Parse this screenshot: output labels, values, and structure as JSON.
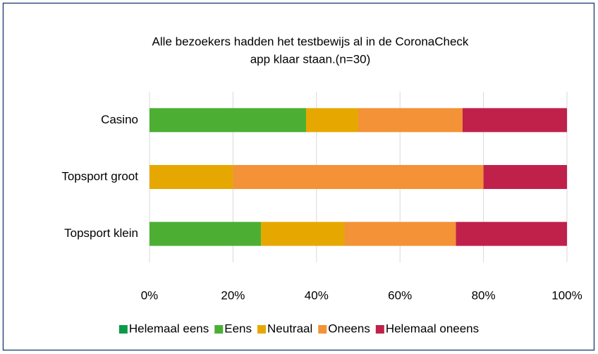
{
  "chart_data": {
    "type": "stacked_bar_horizontal",
    "title": [
      "Alle bezoekers hadden het testbewijs al in de CoronaCheck",
      "app klaar staan.(n=30)"
    ],
    "categories": [
      "Casino",
      "Topsport groot",
      "Topsport klein"
    ],
    "series": [
      {
        "name": "Helemaal eens",
        "color": "#0d9a48",
        "values": [
          0,
          0,
          0
        ]
      },
      {
        "name": "Eens",
        "color": "#4caf34",
        "values": [
          37.5,
          0,
          26.7
        ]
      },
      {
        "name": "Neutraal",
        "color": "#e6a800",
        "values": [
          12.5,
          20,
          20
        ]
      },
      {
        "name": "Oneens",
        "color": "#f39237",
        "values": [
          25,
          60,
          26.7
        ]
      },
      {
        "name": "Helemaal oneens",
        "color": "#c0214b",
        "values": [
          25,
          20,
          26.6
        ]
      }
    ],
    "xlim": [
      0,
      100
    ],
    "xticks": [
      {
        "value": 0,
        "label": "0%"
      },
      {
        "value": 20,
        "label": "20%"
      },
      {
        "value": 40,
        "label": "40%"
      },
      {
        "value": 60,
        "label": "60%"
      },
      {
        "value": 80,
        "label": "80%"
      },
      {
        "value": 100,
        "label": "100%"
      }
    ],
    "grid": true,
    "legend": "bottom"
  }
}
